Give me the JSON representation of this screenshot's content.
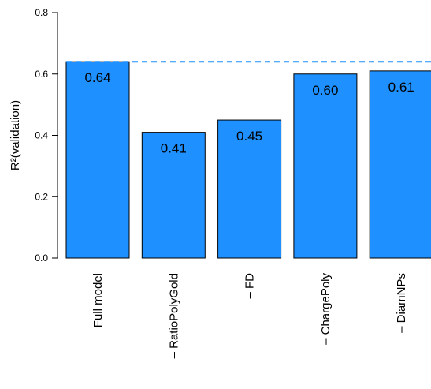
{
  "chart_data": {
    "type": "bar",
    "categories": [
      "Full model",
      "– RatioPolyGold",
      "– FD",
      "– ChargePoly",
      "– DiamNPs"
    ],
    "values": [
      0.64,
      0.41,
      0.45,
      0.6,
      0.61
    ],
    "data_labels": [
      "0.64",
      "0.41",
      "0.45",
      "0.60",
      "0.61"
    ],
    "ylabel": "R²(validation)",
    "ylim": [
      0,
      0.8
    ],
    "yticks": [
      0.0,
      0.2,
      0.4,
      0.6,
      0.8
    ],
    "ytick_labels": [
      "0.0",
      "0.2",
      "0.4",
      "0.6",
      "0.8"
    ],
    "reference_line": {
      "value": 0.64,
      "style": "dashed"
    },
    "grid": false,
    "legend": "none",
    "bar_color": "#1E90FF",
    "reference_line_color": "#1E90FF"
  }
}
